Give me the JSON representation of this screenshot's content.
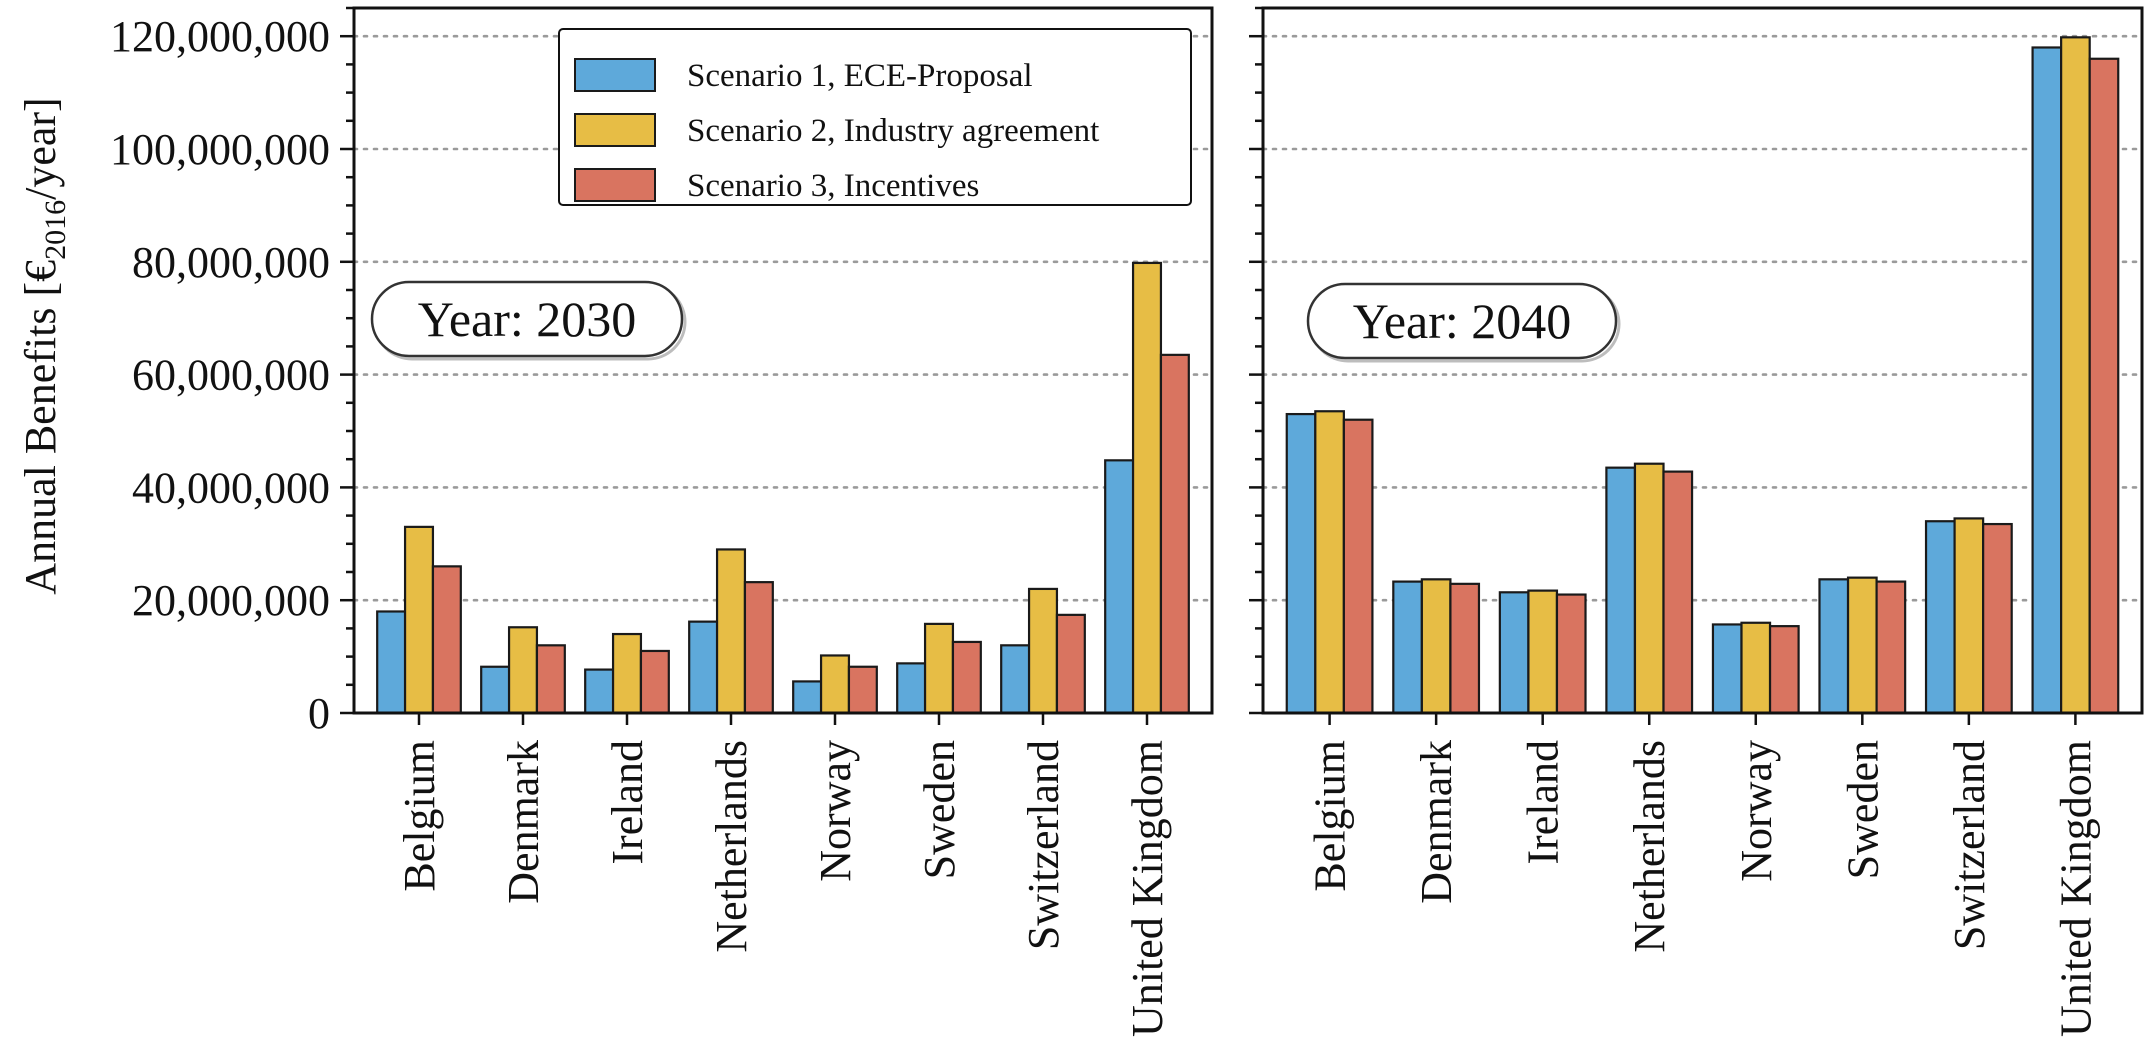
{
  "chart_data": {
    "type": "bar",
    "ylabel": "Annual Benefits [€",
    "ylabel_sub": "2016",
    "ylabel_suffix": "/year]",
    "ylim": [
      0,
      125000000
    ],
    "yticks": [
      0,
      20000000,
      40000000,
      60000000,
      80000000,
      100000000,
      120000000
    ],
    "ytick_labels": [
      "0",
      "20,000,000",
      "40,000,000",
      "60,000,000",
      "80,000,000",
      "100,000,000",
      "120,000,000"
    ],
    "grid": "horizontal dotted",
    "legend_position": "top-right of left panel",
    "categories": [
      "Belgium",
      "Denmark",
      "Ireland",
      "Netherlands",
      "Norway",
      "Sweden",
      "Switzerland",
      "United Kingdom"
    ],
    "series_names": [
      "Scenario 1, ECE-Proposal",
      "Scenario 2, Industry agreement",
      "Scenario 3, Incentives"
    ],
    "series_colors": [
      "#5ea9da",
      "#e7bd45",
      "#d97460"
    ],
    "panels": [
      {
        "annotation": "Year: 2030",
        "series": [
          {
            "name": "Scenario 1, ECE-Proposal",
            "values": [
              18000000,
              8200000,
              7700000,
              16200000,
              5600000,
              8800000,
              12000000,
              44800000
            ]
          },
          {
            "name": "Scenario 2, Industry agreement",
            "values": [
              33000000,
              15200000,
              14000000,
              29000000,
              10200000,
              15800000,
              22000000,
              79800000
            ]
          },
          {
            "name": "Scenario 3, Incentives",
            "values": [
              26000000,
              12000000,
              11000000,
              23200000,
              8200000,
              12600000,
              17400000,
              63500000
            ]
          }
        ]
      },
      {
        "annotation": "Year: 2040",
        "series": [
          {
            "name": "Scenario 1, ECE-Proposal",
            "values": [
              53000000,
              23300000,
              21400000,
              43500000,
              15700000,
              23700000,
              34000000,
              118000000
            ]
          },
          {
            "name": "Scenario 2, Industry agreement",
            "values": [
              53500000,
              23700000,
              21700000,
              44200000,
              16000000,
              24000000,
              34500000,
              119800000
            ]
          },
          {
            "name": "Scenario 3, Incentives",
            "values": [
              52000000,
              22900000,
              21000000,
              42800000,
              15400000,
              23300000,
              33500000,
              116000000
            ]
          }
        ]
      }
    ]
  }
}
